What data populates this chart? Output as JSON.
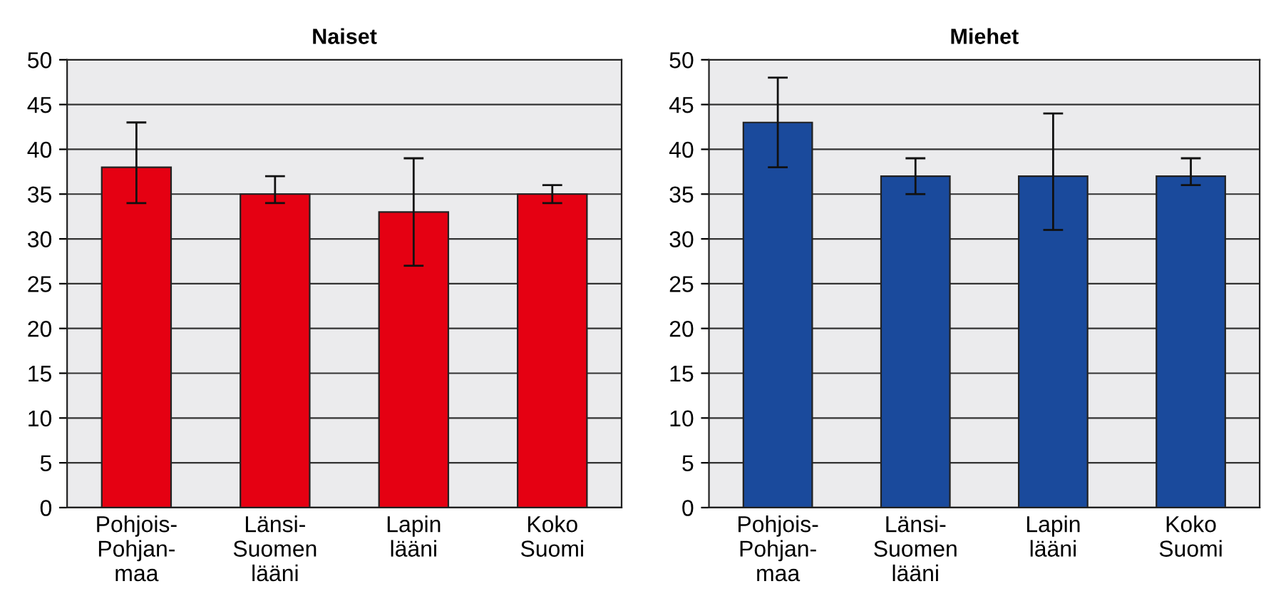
{
  "chart_data": [
    {
      "type": "bar",
      "title": "Naiset",
      "categories": [
        "Pohjois-\nPohjan-\nmaa",
        "Länsi-\nSuomen\nlääni",
        "Lapin\nlääni",
        "Koko\nSuomi"
      ],
      "values": [
        38,
        35,
        33,
        35
      ],
      "color": "#e50012",
      "errors": [
        [
          34,
          43
        ],
        [
          34,
          37
        ],
        [
          27,
          39
        ],
        [
          34,
          36
        ]
      ],
      "ylim": [
        0,
        50
      ],
      "yticks": [
        0,
        5,
        10,
        15,
        20,
        25,
        30,
        35,
        40,
        45,
        50
      ],
      "grid": "y"
    },
    {
      "type": "bar",
      "title": "Miehet",
      "categories": [
        "Pohjois-\nPohjan-\nmaa",
        "Länsi-\nSuomen\nlääni",
        "Lapin\nlääni",
        "Koko\nSuomi"
      ],
      "values": [
        43,
        37,
        37,
        37
      ],
      "color": "#1a4a9c",
      "errors": [
        [
          38,
          48
        ],
        [
          35,
          39
        ],
        [
          31,
          44
        ],
        [
          36,
          39
        ]
      ],
      "ylim": [
        0,
        50
      ],
      "yticks": [
        0,
        5,
        10,
        15,
        20,
        25,
        30,
        35,
        40,
        45,
        50
      ],
      "grid": "y"
    }
  ]
}
